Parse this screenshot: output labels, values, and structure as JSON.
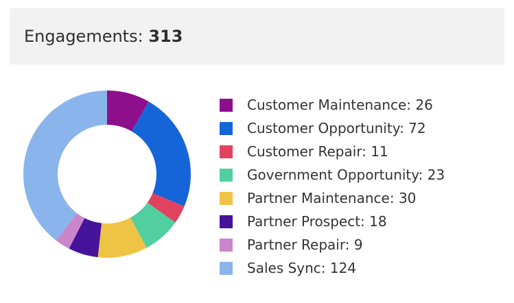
{
  "header": {
    "label": "Engagements:",
    "total": "313"
  },
  "chart_data": {
    "type": "pie",
    "variant": "donut",
    "title": "Engagements: 313",
    "total": 313,
    "legend_position": "right",
    "categories": [
      "Customer Maintenance",
      "Customer Opportunity",
      "Customer Repair",
      "Government Opportunity",
      "Partner Maintenance",
      "Partner Prospect",
      "Partner Repair",
      "Sales Sync"
    ],
    "values": [
      26,
      72,
      11,
      23,
      30,
      18,
      9,
      124
    ],
    "colors": [
      "#8e0f8c",
      "#1565d8",
      "#e0425f",
      "#52cfa0",
      "#efc343",
      "#45149a",
      "#cc85cb",
      "#8ab4ec"
    ],
    "legend_labels": [
      "Customer Maintenance: 26",
      "Customer Opportunity: 72",
      "Customer Repair: 11",
      "Government Opportunity: 23",
      "Partner Maintenance: 30",
      "Partner Prospect: 18",
      "Partner Repair: 9",
      "Sales Sync: 124"
    ]
  }
}
